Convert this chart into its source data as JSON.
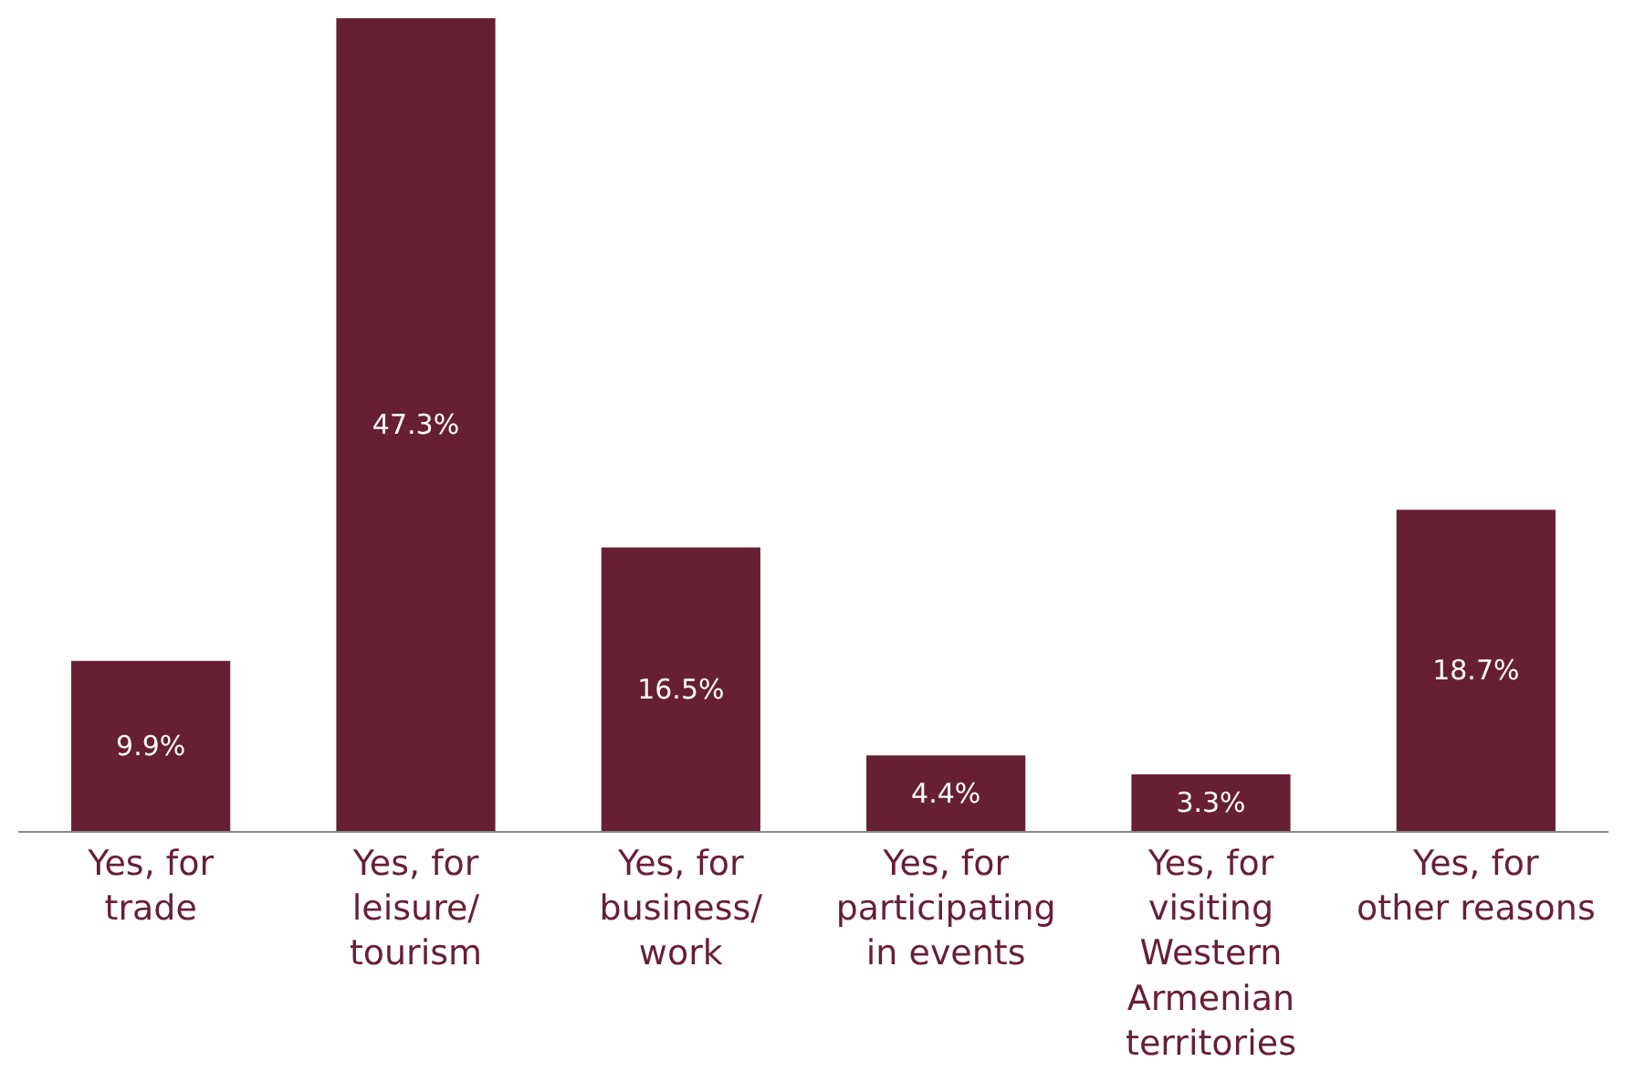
{
  "chart_data": {
    "type": "bar",
    "categories": [
      "Yes, for\ntrade",
      "Yes, for\nleisure/\ntourism",
      "Yes, for\nbusiness/\nwork",
      "Yes, for\nparticipating\nin events",
      "Yes, for\nvisiting\nWestern\nArmenian\nterritories",
      "Yes, for\nother reasons"
    ],
    "values": [
      9.9,
      47.3,
      16.5,
      4.4,
      3.3,
      18.7
    ],
    "value_labels": [
      "9.9%",
      "47.3%",
      "16.5%",
      "4.4%",
      "3.3%",
      "18.7%"
    ],
    "color": "#671f33",
    "legend": false
  }
}
